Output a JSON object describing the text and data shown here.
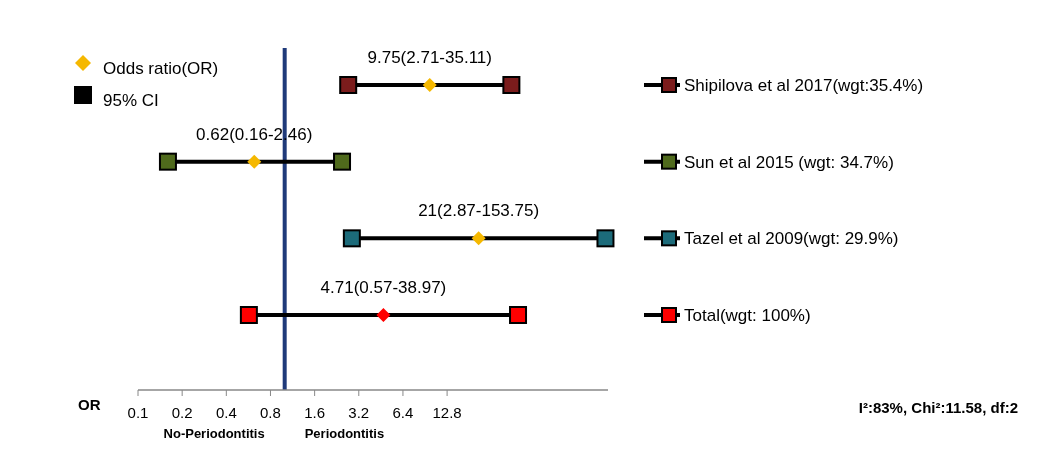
{
  "chart_data": {
    "type": "scatter",
    "orientation": "horizontal",
    "log": "x",
    "grid": false,
    "legend": "top left",
    "categories": [
      "Shipilova et al 2017(wgt:35.4%)",
      "Sun et al 2015 (wgt: 34.7%)",
      "Tazel et al 2009(wgt: 29.9%)",
      "Total(wgt: 100%)"
    ],
    "xlabel": "OR",
    "xlim": [
      0.1,
      160
    ],
    "xticks": [
      0.1,
      0.2,
      0.4,
      0.8,
      1.6,
      3.2,
      6.4,
      12.8
    ],
    "series": [
      {
        "name": "Odds ratio(OR)",
        "color": "#f5b800",
        "colors": [
          "#f5b800",
          "#f5b800",
          "#f5b800",
          "#ff0000"
        ],
        "marker": "diamond",
        "values": [
          9.75,
          0.62,
          21,
          4.71
        ],
        "value_labels": [
          "9.75(2.71-35.11)",
          "0.62(0.16-2.46)",
          "21(2.87-153.75)",
          "4.71(0.57-38.97)"
        ]
      },
      {
        "name": "95% CI",
        "color": "#000000",
        "colors": [
          "#7b1c1c",
          "#4f6a1c",
          "#1c6b7a",
          "#ff0000"
        ],
        "marker": "square",
        "values": [
          2.71,
          0.16,
          2.87,
          0.57
        ]
      },
      {
        "color": "#000000",
        "colors": [
          "#7b1c1c",
          "#4f6a1c",
          "#1c6b7a",
          "#ff0000"
        ],
        "marker": "square",
        "values": [
          35.11,
          2.46,
          153.75,
          38.97
        ]
      }
    ],
    "ref_lines": [
      {
        "axis": "x",
        "value": 1,
        "color": "#1f3a7a"
      }
    ],
    "annotations": [
      "No-Periodontitis",
      "Periodontitis",
      "I²:83%, Chi²:11.58, df:2"
    ]
  }
}
